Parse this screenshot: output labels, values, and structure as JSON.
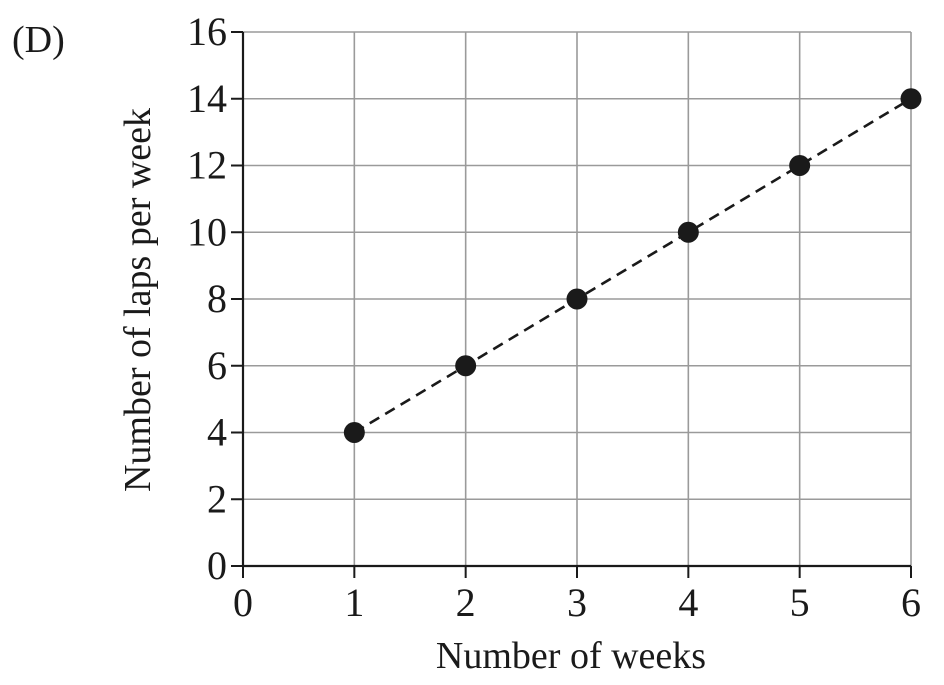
{
  "option_label": "(D)",
  "chart_data": {
    "type": "scatter",
    "xlabel": "Number of weeks",
    "ylabel": "Number of laps per week",
    "xlim": [
      0,
      6
    ],
    "ylim": [
      0,
      16
    ],
    "x_ticks": [
      0,
      1,
      2,
      3,
      4,
      5,
      6
    ],
    "y_ticks": [
      0,
      2,
      4,
      6,
      8,
      10,
      12,
      14,
      16
    ],
    "grid": true,
    "trend_line": "dashed",
    "series": [
      {
        "x": [
          1,
          2,
          3,
          4,
          5,
          6
        ],
        "y": [
          4,
          6,
          8,
          10,
          12,
          14
        ]
      }
    ],
    "colors": {
      "grid": "#9a9a9a",
      "axis": "#1a1a1a",
      "points": "#1a1a1a"
    }
  }
}
